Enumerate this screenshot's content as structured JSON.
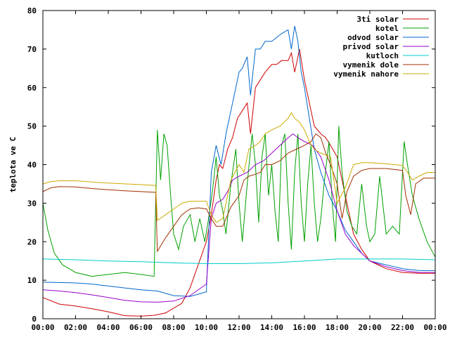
{
  "chart_data": {
    "type": "line",
    "title": "",
    "xlabel": "",
    "ylabel": "teplota ve C",
    "xlim": [
      0,
      24
    ],
    "ylim": [
      0,
      80
    ],
    "grid": false,
    "legend_position": "top-right",
    "x_ticks": [
      "00:00",
      "02:00",
      "04:00",
      "06:00",
      "08:00",
      "10:00",
      "12:00",
      "14:00",
      "16:00",
      "18:00",
      "20:00",
      "22:00",
      "00:00"
    ],
    "y_ticks": [
      "0",
      "10",
      "20",
      "30",
      "40",
      "50",
      "60",
      "70",
      "80"
    ],
    "series": [
      {
        "name": "3ti solar",
        "color": "#cc0000",
        "points": [
          [
            0,
            5.5
          ],
          [
            1,
            3.8
          ],
          [
            2,
            3.3
          ],
          [
            3,
            2.6
          ],
          [
            4,
            1.8
          ],
          [
            5,
            0.8
          ],
          [
            6,
            0.7
          ],
          [
            6.8,
            0.9
          ],
          [
            7.5,
            1.5
          ],
          [
            8.5,
            4
          ],
          [
            9,
            8
          ],
          [
            9.5,
            14
          ],
          [
            10,
            20
          ],
          [
            10.3,
            27
          ],
          [
            10.6,
            36
          ],
          [
            10.8,
            40
          ],
          [
            11,
            39
          ],
          [
            11.3,
            44
          ],
          [
            11.6,
            47
          ],
          [
            11.9,
            52
          ],
          [
            12.2,
            54
          ],
          [
            12.5,
            56
          ],
          [
            12.7,
            48
          ],
          [
            13,
            60
          ],
          [
            13.3,
            62
          ],
          [
            13.6,
            64
          ],
          [
            14,
            66
          ],
          [
            14.3,
            66
          ],
          [
            14.6,
            67
          ],
          [
            15,
            67
          ],
          [
            15.2,
            69
          ],
          [
            15.4,
            64
          ],
          [
            15.7,
            70
          ],
          [
            16,
            62
          ],
          [
            16.3,
            56
          ],
          [
            16.6,
            50
          ],
          [
            17,
            48
          ],
          [
            17.3,
            47
          ],
          [
            17.6,
            45
          ],
          [
            18,
            42
          ],
          [
            18.5,
            32
          ],
          [
            19,
            22
          ],
          [
            19.5,
            18
          ],
          [
            20,
            15
          ],
          [
            21,
            13
          ],
          [
            22,
            12
          ],
          [
            23,
            11.8
          ],
          [
            24,
            11.8
          ]
        ]
      },
      {
        "name": "kotel",
        "color": "#00a000",
        "points": [
          [
            0,
            30
          ],
          [
            0.3,
            23
          ],
          [
            0.7,
            17
          ],
          [
            1.2,
            14
          ],
          [
            2,
            12
          ],
          [
            3,
            11
          ],
          [
            4,
            11.5
          ],
          [
            5,
            12
          ],
          [
            6,
            11.5
          ],
          [
            6.8,
            11
          ],
          [
            7,
            49
          ],
          [
            7.2,
            36
          ],
          [
            7.4,
            48
          ],
          [
            7.6,
            45
          ],
          [
            7.8,
            33
          ],
          [
            8,
            22
          ],
          [
            8.3,
            18
          ],
          [
            8.6,
            24
          ],
          [
            9,
            27
          ],
          [
            9.3,
            20
          ],
          [
            9.6,
            26
          ],
          [
            9.9,
            20
          ],
          [
            10.1,
            25
          ],
          [
            10.4,
            34
          ],
          [
            10.6,
            42
          ],
          [
            10.8,
            32
          ],
          [
            11,
            28
          ],
          [
            11.2,
            22
          ],
          [
            11.5,
            35
          ],
          [
            11.8,
            44
          ],
          [
            12,
            30
          ],
          [
            12.2,
            20
          ],
          [
            12.5,
            35
          ],
          [
            12.8,
            48
          ],
          [
            13,
            40
          ],
          [
            13.2,
            25
          ],
          [
            13.4,
            42
          ],
          [
            13.6,
            48
          ],
          [
            13.8,
            32
          ],
          [
            14,
            40
          ],
          [
            14.2,
            28
          ],
          [
            14.4,
            20
          ],
          [
            14.6,
            45
          ],
          [
            14.8,
            48
          ],
          [
            15,
            30
          ],
          [
            15.2,
            18
          ],
          [
            15.4,
            38
          ],
          [
            15.6,
            48
          ],
          [
            15.8,
            30
          ],
          [
            16,
            20
          ],
          [
            16.2,
            35
          ],
          [
            16.4,
            45
          ],
          [
            16.6,
            30
          ],
          [
            16.8,
            20
          ],
          [
            17,
            26
          ],
          [
            17.2,
            35
          ],
          [
            17.5,
            46
          ],
          [
            17.7,
            30
          ],
          [
            17.9,
            20
          ],
          [
            18.1,
            50
          ],
          [
            18.3,
            38
          ],
          [
            18.6,
            28
          ],
          [
            18.9,
            24
          ],
          [
            19.2,
            22
          ],
          [
            19.5,
            35
          ],
          [
            19.8,
            24
          ],
          [
            20,
            20
          ],
          [
            20.3,
            22
          ],
          [
            20.6,
            37
          ],
          [
            21,
            22
          ],
          [
            21.4,
            24
          ],
          [
            21.8,
            22
          ],
          [
            22.1,
            46
          ],
          [
            22.3,
            40
          ],
          [
            22.6,
            32
          ],
          [
            23,
            26
          ],
          [
            23.5,
            20
          ],
          [
            24,
            16
          ]
        ]
      },
      {
        "name": "odvod solar",
        "color": "#0066cc",
        "points": [
          [
            0,
            9.5
          ],
          [
            1,
            9.4
          ],
          [
            2,
            9.3
          ],
          [
            3,
            9
          ],
          [
            4,
            8.5
          ],
          [
            5,
            8
          ],
          [
            6,
            7.5
          ],
          [
            7,
            7.2
          ],
          [
            8,
            6
          ],
          [
            9,
            5.8
          ],
          [
            10,
            7
          ],
          [
            10.3,
            38
          ],
          [
            10.6,
            45
          ],
          [
            10.9,
            40
          ],
          [
            11.2,
            48
          ],
          [
            11.5,
            54
          ],
          [
            11.8,
            60
          ],
          [
            12,
            64
          ],
          [
            12.2,
            65
          ],
          [
            12.5,
            68
          ],
          [
            12.7,
            58
          ],
          [
            13,
            70
          ],
          [
            13.3,
            70
          ],
          [
            13.6,
            72
          ],
          [
            14,
            72
          ],
          [
            14.3,
            73
          ],
          [
            14.6,
            74
          ],
          [
            15,
            75
          ],
          [
            15.2,
            70
          ],
          [
            15.4,
            76
          ],
          [
            15.6,
            72
          ],
          [
            15.8,
            64
          ],
          [
            16,
            60
          ],
          [
            16.3,
            52
          ],
          [
            16.6,
            44
          ],
          [
            17,
            38
          ],
          [
            17.5,
            32
          ],
          [
            18,
            28
          ],
          [
            18.5,
            23
          ],
          [
            19,
            20
          ],
          [
            19.5,
            17
          ],
          [
            20,
            15
          ],
          [
            21,
            14
          ],
          [
            22,
            13
          ],
          [
            23,
            12.5
          ],
          [
            24,
            12.5
          ]
        ]
      },
      {
        "name": "privod solar",
        "color": "#9900cc",
        "points": [
          [
            0,
            7.5
          ],
          [
            1,
            7.2
          ],
          [
            2,
            6.8
          ],
          [
            3,
            6.2
          ],
          [
            4,
            5.5
          ],
          [
            5,
            4.8
          ],
          [
            6,
            4.4
          ],
          [
            7,
            4.3
          ],
          [
            8,
            4.6
          ],
          [
            9,
            6
          ],
          [
            10,
            9
          ],
          [
            10.3,
            26
          ],
          [
            10.6,
            30
          ],
          [
            11,
            31
          ],
          [
            11.3,
            33
          ],
          [
            11.6,
            36
          ],
          [
            12,
            37
          ],
          [
            12.5,
            38
          ],
          [
            13,
            40
          ],
          [
            13.5,
            41
          ],
          [
            14,
            43
          ],
          [
            14.5,
            45
          ],
          [
            15,
            47
          ],
          [
            15.3,
            48
          ],
          [
            15.6,
            47
          ],
          [
            16,
            46
          ],
          [
            16.5,
            45
          ],
          [
            17,
            42
          ],
          [
            17.5,
            36
          ],
          [
            18,
            28
          ],
          [
            18.5,
            22
          ],
          [
            19,
            19
          ],
          [
            19.5,
            17
          ],
          [
            20,
            15
          ],
          [
            21,
            13.5
          ],
          [
            22,
            12.5
          ],
          [
            23,
            12
          ],
          [
            24,
            12
          ]
        ]
      },
      {
        "name": "kutloch",
        "color": "#00cccc",
        "points": [
          [
            0,
            15.5
          ],
          [
            2,
            15.3
          ],
          [
            4,
            15
          ],
          [
            6,
            14.8
          ],
          [
            8,
            14.5
          ],
          [
            10,
            14.3
          ],
          [
            12,
            14.3
          ],
          [
            14,
            14.5
          ],
          [
            16,
            15
          ],
          [
            18,
            15.5
          ],
          [
            20,
            15.5
          ],
          [
            22,
            15.5
          ],
          [
            24,
            15.3
          ]
        ]
      },
      {
        "name": "vymenik dole",
        "color": "#a03000",
        "points": [
          [
            0,
            33
          ],
          [
            0.5,
            34
          ],
          [
            1,
            34.3
          ],
          [
            2,
            34.2
          ],
          [
            3,
            33.8
          ],
          [
            4,
            33.5
          ],
          [
            5,
            33.2
          ],
          [
            6,
            33
          ],
          [
            6.9,
            32.8
          ],
          [
            7,
            17.5
          ],
          [
            7.5,
            21
          ],
          [
            8,
            24
          ],
          [
            8.5,
            27
          ],
          [
            9,
            28.5
          ],
          [
            9.5,
            28.8
          ],
          [
            10,
            28.5
          ],
          [
            10.3,
            26
          ],
          [
            10.6,
            24
          ],
          [
            11,
            24
          ],
          [
            11.5,
            29
          ],
          [
            12,
            32
          ],
          [
            12.3,
            36
          ],
          [
            12.6,
            37
          ],
          [
            13,
            37.5
          ],
          [
            13.3,
            38
          ],
          [
            13.6,
            40
          ],
          [
            14,
            40
          ],
          [
            14.5,
            41
          ],
          [
            15,
            43
          ],
          [
            15.5,
            44
          ],
          [
            16,
            45
          ],
          [
            16.4,
            46
          ],
          [
            16.7,
            48
          ],
          [
            17,
            47
          ],
          [
            17.3,
            43
          ],
          [
            17.6,
            40
          ],
          [
            18,
            35
          ],
          [
            18.3,
            26
          ],
          [
            18.6,
            33
          ],
          [
            19,
            37
          ],
          [
            19.5,
            38.5
          ],
          [
            20,
            39
          ],
          [
            21,
            39
          ],
          [
            22,
            38.5
          ],
          [
            22.2,
            32
          ],
          [
            22.5,
            27
          ],
          [
            22.8,
            35
          ],
          [
            23.3,
            36.5
          ],
          [
            24,
            36.5
          ]
        ]
      },
      {
        "name": "vymenik nahore",
        "color": "#ccaa00",
        "points": [
          [
            0,
            35
          ],
          [
            0.5,
            35.6
          ],
          [
            1,
            35.8
          ],
          [
            2,
            35.8
          ],
          [
            3,
            35.5
          ],
          [
            4,
            35.2
          ],
          [
            5,
            35
          ],
          [
            6,
            34.8
          ],
          [
            6.9,
            34.6
          ],
          [
            7,
            25.5
          ],
          [
            7.5,
            27
          ],
          [
            8,
            28.5
          ],
          [
            8.5,
            30
          ],
          [
            9,
            30.5
          ],
          [
            9.5,
            30.5
          ],
          [
            10,
            30.5
          ],
          [
            10.3,
            27
          ],
          [
            10.6,
            25
          ],
          [
            11,
            26
          ],
          [
            11.5,
            36
          ],
          [
            12,
            40
          ],
          [
            12.3,
            38
          ],
          [
            12.6,
            44
          ],
          [
            13,
            45
          ],
          [
            13.3,
            46
          ],
          [
            13.6,
            48
          ],
          [
            14,
            49
          ],
          [
            14.5,
            50
          ],
          [
            15,
            52
          ],
          [
            15.2,
            53.5
          ],
          [
            15.4,
            52
          ],
          [
            15.7,
            51
          ],
          [
            16,
            49
          ],
          [
            16.3,
            46
          ],
          [
            16.6,
            44
          ],
          [
            17,
            43
          ],
          [
            17.3,
            42.5
          ],
          [
            17.6,
            42
          ],
          [
            18,
            30
          ],
          [
            18.5,
            34
          ],
          [
            19,
            40
          ],
          [
            19.5,
            40.5
          ],
          [
            20,
            40.5
          ],
          [
            21,
            40.2
          ],
          [
            22,
            39.8
          ],
          [
            22.3,
            38
          ],
          [
            22.6,
            36
          ],
          [
            23,
            37
          ],
          [
            23.5,
            38
          ],
          [
            24,
            38
          ]
        ]
      }
    ]
  }
}
